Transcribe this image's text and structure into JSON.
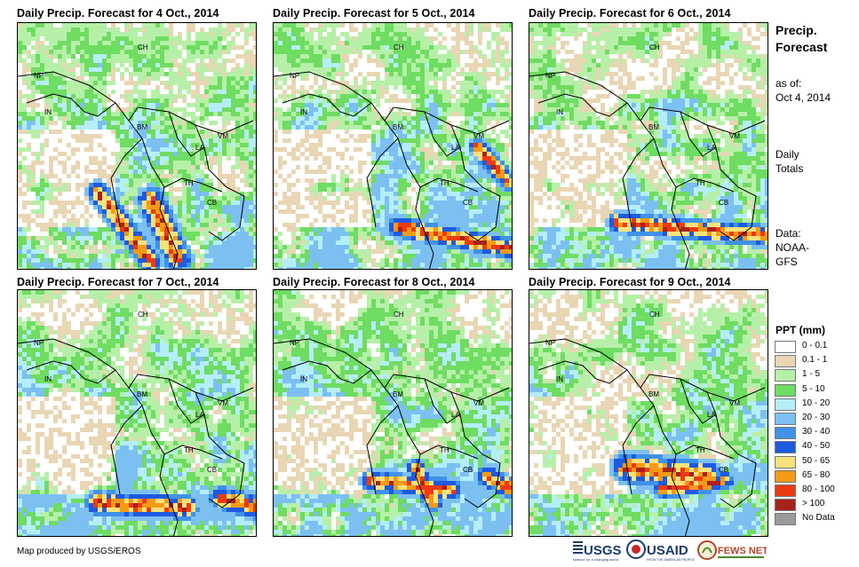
{
  "panels": [
    {
      "title": "Daily Precip. Forecast for 4 Oct., 2014",
      "day": 0
    },
    {
      "title": "Daily Precip. Forecast for 5 Oct., 2014",
      "day": 1
    },
    {
      "title": "Daily Precip. Forecast for 6 Oct., 2014",
      "day": 2
    },
    {
      "title": "Daily Precip. Forecast for 7 Oct., 2014",
      "day": 3
    },
    {
      "title": "Daily Precip. Forecast for 8 Oct., 2014",
      "day": 4
    },
    {
      "title": "Daily Precip. Forecast for 9 Oct., 2014",
      "day": 5
    }
  ],
  "country_labels": [
    "CH",
    "NP",
    "IN",
    "BM",
    "VM",
    "LA",
    "TH",
    "CB"
  ],
  "side": {
    "title_line1": "Precip.",
    "title_line2": "Forecast",
    "asof_line1": "as of:",
    "asof_line2": "Oct 4, 2014",
    "totals_line1": "Daily",
    "totals_line2": "Totals",
    "data_line1": "Data:",
    "data_line2": "NOAA-",
    "data_line3": "GFS"
  },
  "legend": {
    "title": "PPT (mm)",
    "classes": [
      {
        "label": "0 - 0.1",
        "color": "#ffffff"
      },
      {
        "label": "0.1 - 1",
        "color": "#e8d6b4"
      },
      {
        "label": "1 - 5",
        "color": "#b6f0a8"
      },
      {
        "label": "5 - 10",
        "color": "#6fdc62"
      },
      {
        "label": "10 - 20",
        "color": "#b4eef8"
      },
      {
        "label": "20 - 30",
        "color": "#7cc0f2"
      },
      {
        "label": "30 - 40",
        "color": "#3f92e8"
      },
      {
        "label": "40 - 50",
        "color": "#1e5ae0"
      },
      {
        "label": "50 - 65",
        "color": "#f8e27c"
      },
      {
        "label": "65 - 80",
        "color": "#f59a16"
      },
      {
        "label": "80 - 100",
        "color": "#ee3a10"
      },
      {
        "label": "> 100",
        "color": "#a8221c"
      },
      {
        "label": "No Data",
        "color": "#9a9a9a"
      }
    ]
  },
  "credit": "Map produced by USGS/EROS",
  "logos": {
    "usgs": "USGS",
    "usgs_tag": "science for a changing world",
    "usaid": "USAID",
    "usaid_tag": "FROM THE AMERICAN PEOPLE",
    "fews": "FEWS NET"
  }
}
